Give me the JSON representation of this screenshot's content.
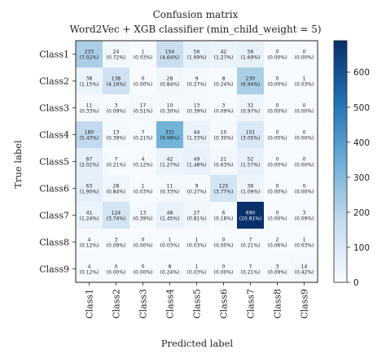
{
  "chart_data": {
    "type": "heatmap",
    "title": "Confusion matrix",
    "subtitle": "Word2Vec + XGB classifier (min_child_weight = 5)",
    "xlabel": "Predicted label",
    "ylabel": "True label",
    "row_labels": [
      "Class1",
      "Class2",
      "Class3",
      "Class4",
      "Class5",
      "Class6",
      "Class7",
      "Class8",
      "Class9"
    ],
    "col_labels": [
      "Class1",
      "Class2",
      "Class3",
      "Class4",
      "Class5",
      "Class6",
      "Class7",
      "Class8",
      "Class9"
    ],
    "values": [
      [
        233,
        24,
        1,
        154,
        56,
        42,
        56,
        0,
        0
      ],
      [
        38,
        138,
        0,
        28,
        9,
        8,
        230,
        0,
        1
      ],
      [
        11,
        3,
        17,
        10,
        13,
        3,
        32,
        0,
        0
      ],
      [
        180,
        13,
        7,
        331,
        44,
        10,
        101,
        0,
        0
      ],
      [
        67,
        7,
        4,
        42,
        49,
        21,
        52,
        0,
        0
      ],
      [
        63,
        28,
        1,
        11,
        9,
        125,
        36,
        0,
        0
      ],
      [
        41,
        124,
        13,
        48,
        27,
        6,
        690,
        0,
        3
      ],
      [
        4,
        3,
        0,
        1,
        1,
        0,
        7,
        2,
        1
      ],
      [
        4,
        0,
        0,
        8,
        1,
        0,
        7,
        3,
        14
      ]
    ],
    "percentages": [
      [
        "(7.02%)",
        "(0.72%)",
        "(0.03%)",
        "(4.64%)",
        "(1.69%)",
        "(1.27%)",
        "(1.69%)",
        "(0.00%)",
        "(0.00%)"
      ],
      [
        "(1.15%)",
        "(4.16%)",
        "(0.00%)",
        "(0.84%)",
        "(0.27%)",
        "(0.24%)",
        "(6.94%)",
        "(0.00%)",
        "(0.03%)"
      ],
      [
        "(0.33%)",
        "(0.09%)",
        "(0.51%)",
        "(0.30%)",
        "(0.39%)",
        "(0.09%)",
        "(0.97%)",
        "(0.00%)",
        "(0.00%)"
      ],
      [
        "(5.43%)",
        "(0.39%)",
        "(0.21%)",
        "(9.98%)",
        "(1.33%)",
        "(0.30%)",
        "(3.05%)",
        "(0.00%)",
        "(0.00%)"
      ],
      [
        "(2.02%)",
        "(0.21%)",
        "(0.12%)",
        "(1.27%)",
        "(1.48%)",
        "(0.63%)",
        "(1.57%)",
        "(0.00%)",
        "(0.00%)"
      ],
      [
        "(1.90%)",
        "(0.84%)",
        "(0.03%)",
        "(0.33%)",
        "(0.27%)",
        "(3.77%)",
        "(1.09%)",
        "(0.00%)",
        "(0.00%)"
      ],
      [
        "(1.24%)",
        "(3.74%)",
        "(0.39%)",
        "(1.45%)",
        "(0.81%)",
        "(0.18%)",
        "(20.81%)",
        "(0.00%)",
        "(0.09%)"
      ],
      [
        "(0.12%)",
        "(0.09%)",
        "(0.00%)",
        "(0.03%)",
        "(0.03%)",
        "(0.00%)",
        "(0.21%)",
        "(0.06%)",
        "(0.03%)"
      ],
      [
        "(0.12%)",
        "(0.00%)",
        "(0.00%)",
        "(0.24%)",
        "(0.03%)",
        "(0.00%)",
        "(0.21%)",
        "(0.09%)",
        "(0.42%)"
      ]
    ],
    "colorbar": {
      "range": [
        0,
        690
      ],
      "ticks": [
        0,
        100,
        200,
        300,
        400,
        500,
        600
      ]
    },
    "colormap": {
      "low": "#f7fbff",
      "high": "#08306b"
    }
  }
}
